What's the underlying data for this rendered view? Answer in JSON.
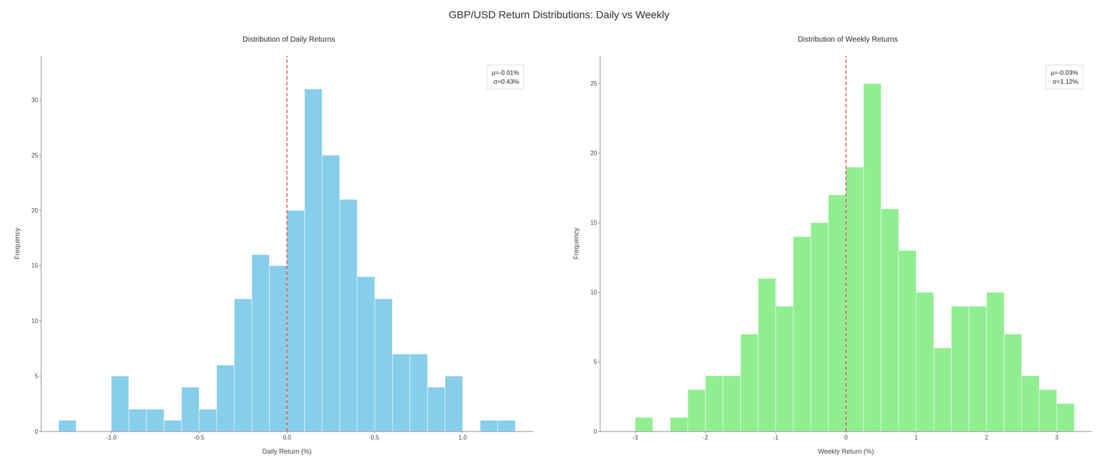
{
  "title": "GBP/USD Return Distributions: Daily vs Weekly",
  "chart_data": [
    {
      "type": "histogram",
      "title": "Distribution of Daily Returns",
      "xlabel": "Daily Return (%)",
      "ylabel": "Frequency",
      "bins": [
        -1.3,
        -1.2,
        -1.1,
        -1.0,
        -0.9,
        -0.8,
        -0.7,
        -0.6,
        -0.5,
        -0.4,
        -0.3,
        -0.2,
        -0.1,
        0.0,
        0.1,
        0.2,
        0.3,
        0.4,
        0.5,
        0.6,
        0.7,
        0.8,
        0.9,
        1.0,
        1.1,
        1.2,
        1.3
      ],
      "values": [
        1,
        0,
        0,
        5,
        2,
        2,
        1,
        4,
        2,
        6,
        12,
        16,
        15,
        20,
        31,
        25,
        21,
        14,
        12,
        7,
        7,
        4,
        5,
        0,
        1,
        1
      ],
      "color": "#87CEEB",
      "xlim": [
        -1.4,
        1.4
      ],
      "xticks": [
        {
          "value": -1.0,
          "label": "-1.0"
        },
        -0.5,
        {
          "value": 0.0,
          "label": "0.0"
        },
        0.5,
        {
          "value": 1.0,
          "label": "1.0"
        }
      ],
      "ylim": [
        0,
        34
      ],
      "yticks": [
        0,
        5,
        10,
        15,
        20,
        25,
        30
      ],
      "lines": [
        {
          "x": 0.0,
          "color": "#e05555",
          "line_style": "dashed"
        }
      ],
      "annotation": "μ=-0.01%\nσ=0.43%",
      "grid": false
    },
    {
      "type": "histogram",
      "title": "Distribution of Weekly Returns",
      "xlabel": "Weekly Return (%)",
      "ylabel": "Frequency",
      "bins": [
        -3.0,
        -2.75,
        -2.5,
        -2.25,
        -2.0,
        -1.75,
        -1.5,
        -1.25,
        -1.0,
        -0.75,
        -0.5,
        -0.25,
        0.0,
        0.25,
        0.5,
        0.75,
        1.0,
        1.25,
        1.5,
        1.75,
        2.0,
        2.25,
        2.5,
        2.75,
        3.0,
        3.25
      ],
      "values": [
        1,
        0,
        1,
        3,
        4,
        4,
        7,
        11,
        9,
        14,
        15,
        17,
        19,
        25,
        16,
        13,
        10,
        6,
        9,
        9,
        10,
        7,
        4,
        3,
        2
      ],
      "color": "#90EE90",
      "xlim": [
        -3.5,
        3.5
      ],
      "xticks": [
        -3,
        -2,
        -1,
        0,
        1,
        2,
        3
      ],
      "ylim": [
        0,
        27
      ],
      "yticks": [
        0,
        5,
        10,
        15,
        20,
        25
      ],
      "lines": [
        {
          "x": 0.0,
          "color": "#e05555",
          "line_style": "dashed"
        }
      ],
      "annotation": "μ=-0.03%\nσ=1.12%",
      "grid": false
    }
  ]
}
